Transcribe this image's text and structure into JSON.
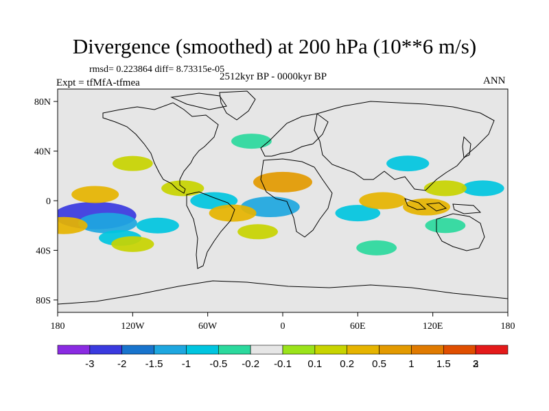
{
  "title": "Divergence (smoothed) at 200 hPa (10**6 m/s)",
  "stats": "rmsd= 0.223864 diff= 8.73315e-05",
  "expt": "Expt = tfMfA-tfmea",
  "period": "2512kyr BP - 0000kyr BP",
  "season": "ANN",
  "chart_data": {
    "type": "heatmap",
    "title": "Divergence (smoothed) at 200 hPa (10**6 m/s)",
    "xlabel": "",
    "ylabel": "",
    "xlim": [
      -180,
      180
    ],
    "ylim": [
      -90,
      90
    ],
    "x_ticks": [
      {
        "value": -180,
        "label": "180"
      },
      {
        "value": -120,
        "label": "120W"
      },
      {
        "value": -60,
        "label": "60W"
      },
      {
        "value": 0,
        "label": "0"
      },
      {
        "value": 60,
        "label": "60E"
      },
      {
        "value": 120,
        "label": "120E"
      },
      {
        "value": 180,
        "label": "180"
      }
    ],
    "y_ticks": [
      {
        "value": 80,
        "label": "80N"
      },
      {
        "value": 40,
        "label": "40N"
      },
      {
        "value": 0,
        "label": "0"
      },
      {
        "value": -40,
        "label": "40S"
      },
      {
        "value": -80,
        "label": "80S"
      }
    ],
    "colorbar": {
      "colors": [
        "#8a2be2",
        "#3a3adf",
        "#1874cd",
        "#1ea7e0",
        "#00c5e0",
        "#2bd99d",
        "#e6e6e6",
        "#9be31a",
        "#c8d400",
        "#e6b400",
        "#e39a00",
        "#e07a00",
        "#e04e00",
        "#e41a1a"
      ],
      "labels": [
        "-3",
        "-2",
        "-1.5",
        "-1",
        "-0.5",
        "-0.2",
        "-0.1",
        "0.1",
        "0.2",
        "0.5",
        "1",
        "1.5",
        "2",
        "3"
      ]
    },
    "field_features": [
      {
        "lon": -150,
        "lat": -12,
        "value": -2.0
      },
      {
        "lon": -140,
        "lat": -18,
        "value": -1.0
      },
      {
        "lon": -130,
        "lat": -30,
        "value": -0.3
      },
      {
        "lon": -100,
        "lat": -20,
        "value": -0.3
      },
      {
        "lon": -55,
        "lat": 0,
        "value": -0.5
      },
      {
        "lon": -10,
        "lat": -5,
        "value": -1.0
      },
      {
        "lon": 60,
        "lat": -10,
        "value": -0.4
      },
      {
        "lon": 100,
        "lat": 30,
        "value": -0.3
      },
      {
        "lon": 160,
        "lat": 10,
        "value": -0.3
      },
      {
        "lon": 130,
        "lat": -20,
        "value": -0.2
      },
      {
        "lon": 75,
        "lat": -38,
        "value": -0.2
      },
      {
        "lon": -25,
        "lat": 48,
        "value": -0.2
      },
      {
        "lon": -150,
        "lat": 5,
        "value": 0.5
      },
      {
        "lon": -175,
        "lat": -20,
        "value": 0.5
      },
      {
        "lon": -120,
        "lat": -35,
        "value": 0.3
      },
      {
        "lon": -80,
        "lat": 10,
        "value": 0.3
      },
      {
        "lon": -40,
        "lat": -10,
        "value": 0.5
      },
      {
        "lon": 0,
        "lat": 15,
        "value": 1.0
      },
      {
        "lon": -20,
        "lat": -25,
        "value": 0.2
      },
      {
        "lon": 80,
        "lat": 0,
        "value": 0.5
      },
      {
        "lon": 115,
        "lat": -5,
        "value": 0.5
      },
      {
        "lon": 130,
        "lat": 10,
        "value": 0.3
      },
      {
        "lon": -120,
        "lat": 30,
        "value": 0.2
      }
    ]
  }
}
